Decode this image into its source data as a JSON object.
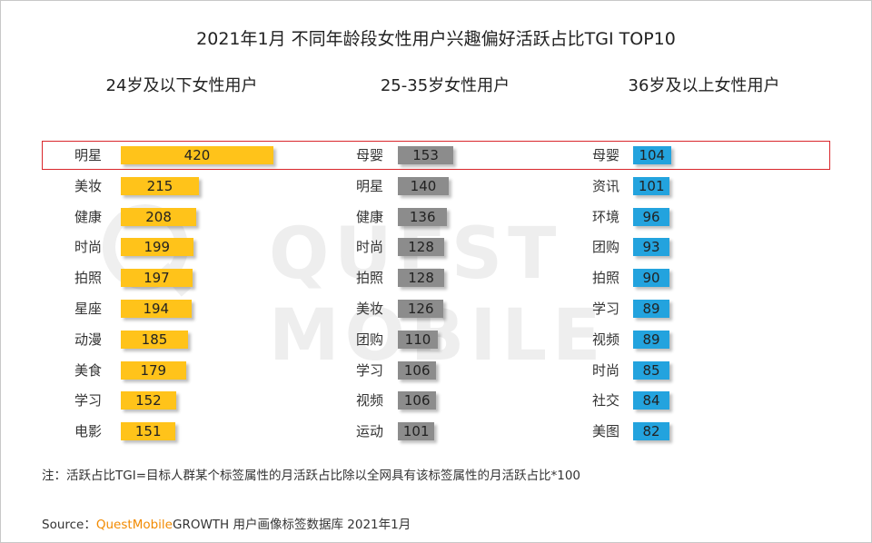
{
  "title": "2021年1月 不同年龄段女性用户兴趣偏好活跃占比TGI TOP10",
  "watermark_text": "QUEST MOBILE",
  "colors": {
    "young": "#ffc31a",
    "mid": "#8c8c8c",
    "old": "#23a3de",
    "highlight_border": "#d9262b",
    "brand": "#f28a00"
  },
  "note": "注：活跃占比TGI=目标人群某个标签属性的月活跃占比除以全网具有该标签属性的月活跃占比*100",
  "source": {
    "prefix": "Source：",
    "brand": "QuestMobile",
    "suffix": "GROWTH 用户画像标签数据库 2021年1月"
  },
  "chart_data": [
    {
      "type": "bar",
      "title": "24岁及以下女性用户",
      "categories": [
        "明星",
        "美妆",
        "健康",
        "时尚",
        "拍照",
        "星座",
        "动漫",
        "美食",
        "学习",
        "电影"
      ],
      "values": [
        420,
        215,
        208,
        199,
        197,
        194,
        185,
        179,
        152,
        151
      ]
    },
    {
      "type": "bar",
      "title": "25-35岁女性用户",
      "categories": [
        "母婴",
        "明星",
        "健康",
        "时尚",
        "拍照",
        "美妆",
        "团购",
        "学习",
        "视频",
        "运动"
      ],
      "values": [
        153,
        140,
        136,
        128,
        128,
        126,
        110,
        106,
        106,
        101
      ]
    },
    {
      "type": "bar",
      "title": "36岁及以上女性用户",
      "categories": [
        "母婴",
        "资讯",
        "环境",
        "团购",
        "拍照",
        "学习",
        "视频",
        "时尚",
        "社交",
        "美图"
      ],
      "values": [
        104,
        101,
        96,
        93,
        90,
        89,
        89,
        85,
        84,
        82
      ]
    }
  ]
}
